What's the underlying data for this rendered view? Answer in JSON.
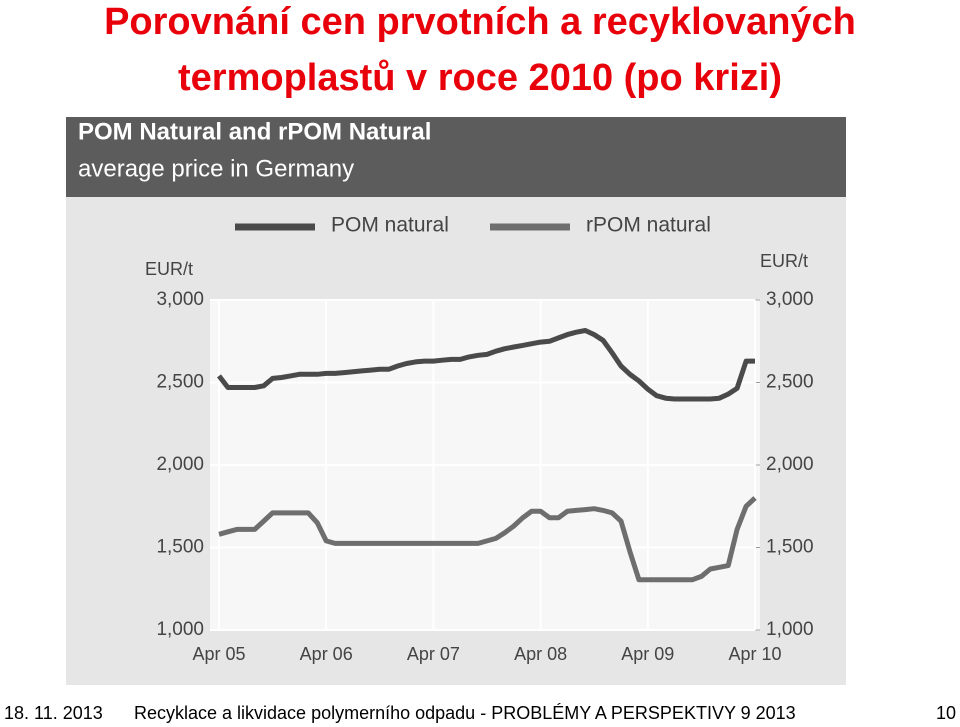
{
  "slide": {
    "title_line1": "Porovnání cen prvotních a recyklovaných",
    "title_line2": "termoplastů v roce 2010 (po krizi)",
    "footer_date": "18. 11. 2013",
    "footer_text": "Recyklace a likvidace polymerního odpadu - PROBLÉMY A PERSPEKTIVY 9 2013",
    "footer_page": "10"
  },
  "chart_data": {
    "type": "line",
    "title": "POM Natural and rPOM Natural",
    "subtitle": "average price in Germany",
    "y_label": "EUR/t",
    "y2_label": "EUR/t",
    "categories": [
      "Apr 05",
      null,
      null,
      null,
      null,
      null,
      null,
      null,
      null,
      null,
      null,
      null,
      "Apr 06",
      null,
      null,
      null,
      null,
      null,
      null,
      null,
      null,
      null,
      null,
      null,
      "Apr 07",
      null,
      null,
      null,
      null,
      null,
      null,
      null,
      null,
      null,
      null,
      null,
      "Apr 08",
      null,
      null,
      null,
      null,
      null,
      null,
      null,
      null,
      null,
      null,
      null,
      "Apr 09",
      null,
      null,
      null,
      null,
      null,
      null,
      null,
      null,
      null,
      null,
      null,
      "Apr 10"
    ],
    "series": [
      {
        "name": "POM natural",
        "color": "#4a4a4a",
        "values": [
          2540,
          2470,
          2470,
          2470,
          2470,
          2480,
          2525,
          2530,
          2540,
          2550,
          2550,
          2550,
          2555,
          2555,
          2560,
          2565,
          2570,
          2575,
          2580,
          2580,
          2600,
          2615,
          2625,
          2630,
          2630,
          2635,
          2640,
          2640,
          2655,
          2665,
          2670,
          2690,
          2705,
          2715,
          2725,
          2735,
          2745,
          2750,
          2770,
          2790,
          2805,
          2815,
          2790,
          2755,
          2680,
          2600,
          2550,
          2510,
          2460,
          2420,
          2405,
          2400,
          2400,
          2400,
          2400,
          2400,
          2405,
          2430,
          2465,
          2630,
          2630
        ]
      },
      {
        "name": "rPOM natural",
        "color": "#6e6e6e",
        "values": [
          1580,
          1595,
          1610,
          1610,
          1610,
          1660,
          1710,
          1710,
          1710,
          1710,
          1710,
          1650,
          1540,
          1525,
          1525,
          1525,
          1525,
          1525,
          1525,
          1525,
          1525,
          1525,
          1525,
          1525,
          1525,
          1525,
          1525,
          1525,
          1525,
          1525,
          1540,
          1555,
          1590,
          1630,
          1680,
          1720,
          1720,
          1680,
          1680,
          1720,
          1725,
          1730,
          1735,
          1725,
          1710,
          1660,
          1475,
          1305,
          1305,
          1305,
          1305,
          1305,
          1305,
          1305,
          1325,
          1370,
          1380,
          1390,
          1610,
          1750,
          1800
        ]
      }
    ],
    "ylim": [
      1000,
      3000
    ],
    "yticks": [
      {
        "value": 1000,
        "label": "1,000"
      },
      {
        "value": 1500,
        "label": "1,500"
      },
      {
        "value": 2000,
        "label": "2,000"
      },
      {
        "value": 2500,
        "label": "2,500"
      },
      {
        "value": 3000,
        "label": "3,000"
      }
    ],
    "y2lim": [
      1000,
      3000
    ],
    "y2ticks": [
      {
        "value": 1000,
        "label": "1,000"
      },
      {
        "value": 1500,
        "label": "1,500"
      },
      {
        "value": 2000,
        "label": "2,000"
      },
      {
        "value": 2500,
        "label": "2,500"
      },
      {
        "value": 3000,
        "label": "3,000"
      }
    ],
    "grid": true
  }
}
